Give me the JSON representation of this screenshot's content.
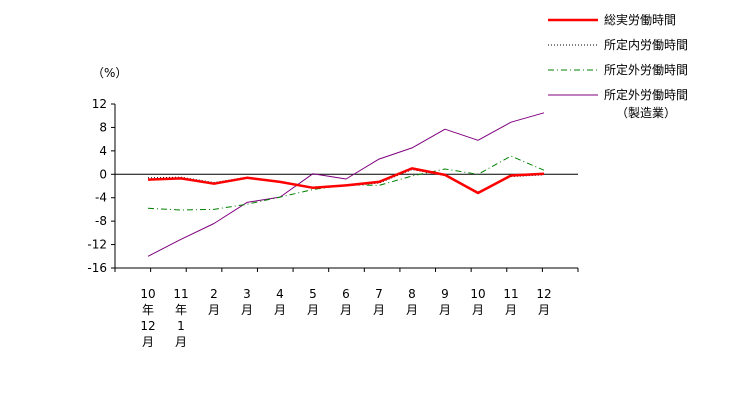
{
  "chart_data": {
    "type": "line",
    "unit_label": "（%）",
    "ylim": [
      -16,
      12
    ],
    "yticks": [
      12,
      8,
      4,
      0,
      -4,
      -8,
      -12,
      -16
    ],
    "grid": false,
    "legend_position": "top-right",
    "categories": [
      [
        "10",
        "年",
        "12",
        "月"
      ],
      [
        "11",
        "年",
        "1",
        "月"
      ],
      [
        "2",
        "月"
      ],
      [
        "3",
        "月"
      ],
      [
        "4",
        "月"
      ],
      [
        "5",
        "月"
      ],
      [
        "6",
        "月"
      ],
      [
        "7",
        "月"
      ],
      [
        "8",
        "月"
      ],
      [
        "9",
        "月"
      ],
      [
        "10",
        "月"
      ],
      [
        "11",
        "月"
      ],
      [
        "12",
        "月"
      ]
    ],
    "series": [
      {
        "name": "総実労働時間",
        "sublabel": "",
        "color": "#ff0000",
        "dash": "",
        "width": 2.5,
        "values": [
          -0.9,
          -0.7,
          -1.6,
          -0.6,
          -1.3,
          -2.3,
          -1.9,
          -1.3,
          1.0,
          -0.1,
          -3.2,
          -0.2,
          0.1
        ]
      },
      {
        "name": "所定内労働時間",
        "sublabel": "",
        "color": "#000000",
        "dash": "1,2",
        "width": 1,
        "values": [
          -0.6,
          -0.5,
          -1.4,
          -0.5,
          -1.2,
          -2.2,
          -2.0,
          -1.5,
          0.8,
          -0.2,
          -3.0,
          -0.4,
          -0.1
        ]
      },
      {
        "name": "所定外労働時間",
        "sublabel": "",
        "color": "#008000",
        "dash": "6,3,1,3",
        "width": 1,
        "values": [
          -5.8,
          -6.1,
          -6.0,
          -5.1,
          -3.9,
          -2.6,
          -1.8,
          -1.9,
          -0.3,
          0.9,
          0.0,
          3.1,
          0.7
        ]
      },
      {
        "name": "所定外労働時間",
        "sublabel": "（製造業）",
        "color": "#800080",
        "dash": "",
        "width": 1,
        "values": [
          -14.0,
          -11.1,
          -8.4,
          -4.8,
          -3.9,
          0.1,
          -0.8,
          2.6,
          4.5,
          7.7,
          5.8,
          8.9,
          10.5
        ]
      }
    ]
  }
}
